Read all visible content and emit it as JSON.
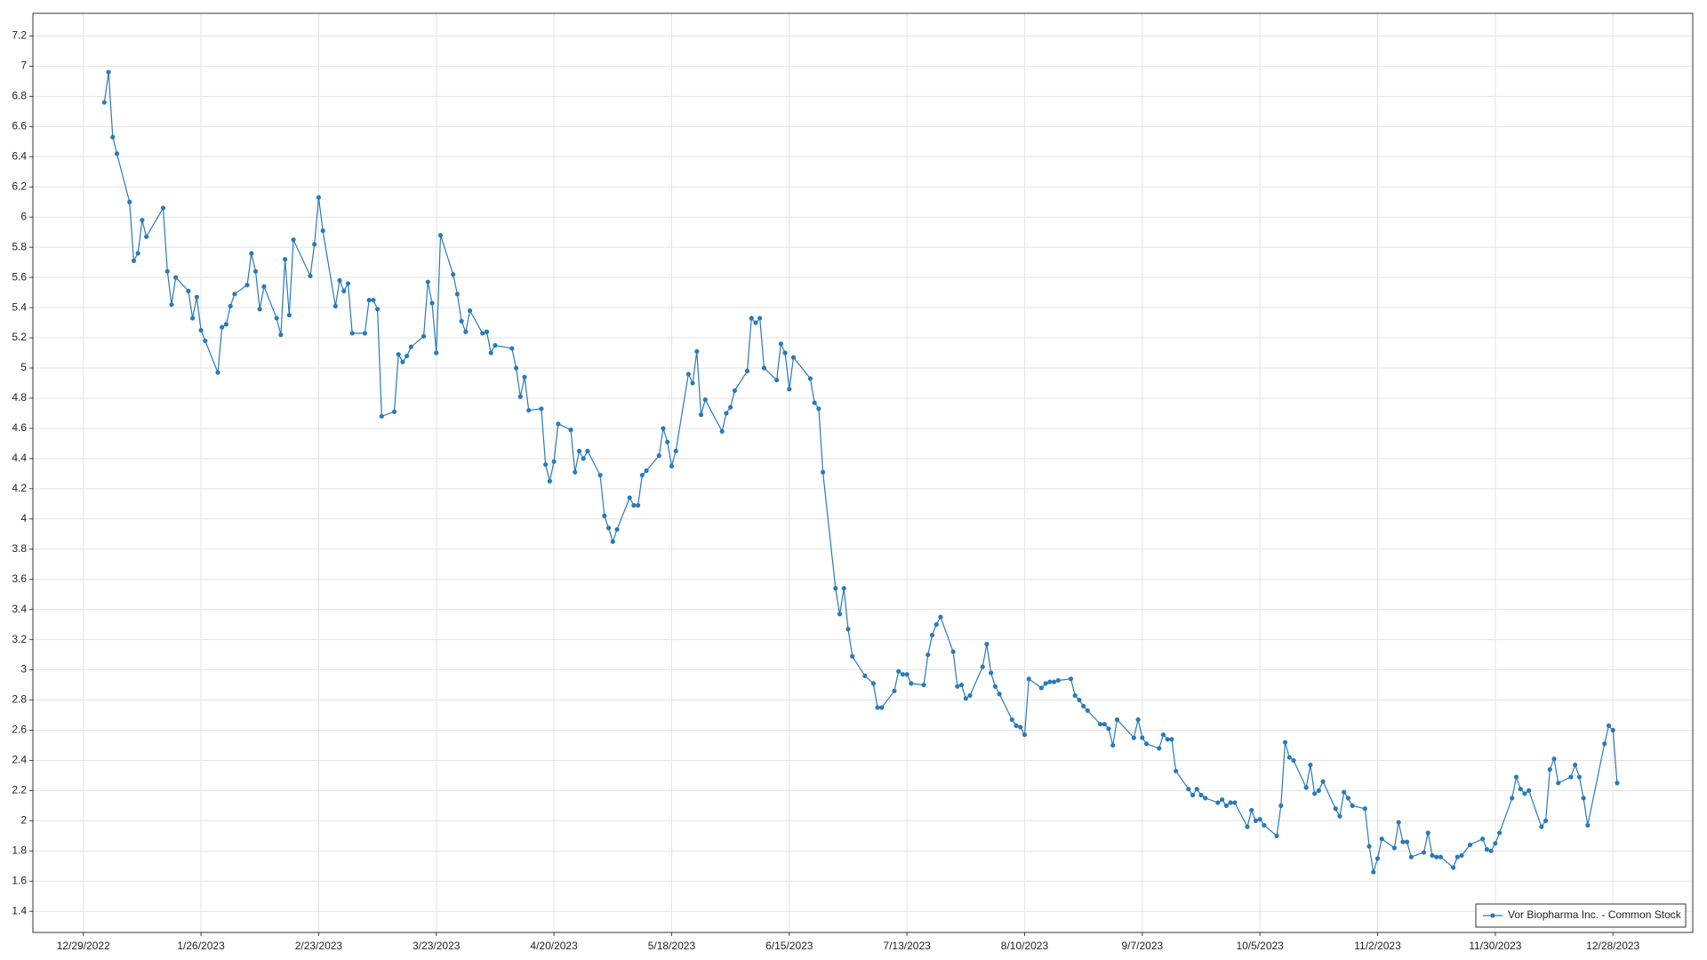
{
  "chart_data": {
    "type": "line",
    "series": [
      {
        "name": "Vor Biopharma Inc. - Common Stock",
        "color": "#2a7ab8",
        "x": [
          "1/3/2023",
          "1/4/2023",
          "1/5/2023",
          "1/6/2023",
          "1/9/2023",
          "1/10/2023",
          "1/11/2023",
          "1/12/2023",
          "1/13/2023",
          "1/17/2023",
          "1/18/2023",
          "1/19/2023",
          "1/20/2023",
          "1/23/2023",
          "1/24/2023",
          "1/25/2023",
          "1/26/2023",
          "1/27/2023",
          "1/30/2023",
          "1/31/2023",
          "2/1/2023",
          "2/2/2023",
          "2/3/2023",
          "2/6/2023",
          "2/7/2023",
          "2/8/2023",
          "2/9/2023",
          "2/10/2023",
          "2/13/2023",
          "2/14/2023",
          "2/15/2023",
          "2/16/2023",
          "2/17/2023",
          "2/21/2023",
          "2/22/2023",
          "2/23/2023",
          "2/24/2023",
          "2/27/2023",
          "2/28/2023",
          "3/1/2023",
          "3/2/2023",
          "3/3/2023",
          "3/6/2023",
          "3/7/2023",
          "3/8/2023",
          "3/9/2023",
          "3/10/2023",
          "3/13/2023",
          "3/14/2023",
          "3/15/2023",
          "3/16/2023",
          "3/17/2023",
          "3/20/2023",
          "3/21/2023",
          "3/22/2023",
          "3/23/2023",
          "3/24/2023",
          "3/27/2023",
          "3/28/2023",
          "3/29/2023",
          "3/30/2023",
          "3/31/2023",
          "4/3/2023",
          "4/4/2023",
          "4/5/2023",
          "4/6/2023",
          "4/10/2023",
          "4/11/2023",
          "4/12/2023",
          "4/13/2023",
          "4/14/2023",
          "4/17/2023",
          "4/18/2023",
          "4/19/2023",
          "4/20/2023",
          "4/21/2023",
          "4/24/2023",
          "4/25/2023",
          "4/26/2023",
          "4/27/2023",
          "4/28/2023",
          "5/1/2023",
          "5/2/2023",
          "5/3/2023",
          "5/4/2023",
          "5/5/2023",
          "5/8/2023",
          "5/9/2023",
          "5/10/2023",
          "5/11/2023",
          "5/12/2023",
          "5/15/2023",
          "5/16/2023",
          "5/17/2023",
          "5/18/2023",
          "5/19/2023",
          "5/22/2023",
          "5/23/2023",
          "5/24/2023",
          "5/25/2023",
          "5/26/2023",
          "5/30/2023",
          "5/31/2023",
          "6/1/2023",
          "6/2/2023",
          "6/5/2023",
          "6/6/2023",
          "6/7/2023",
          "6/8/2023",
          "6/9/2023",
          "6/12/2023",
          "6/13/2023",
          "6/14/2023",
          "6/15/2023",
          "6/16/2023",
          "6/20/2023",
          "6/21/2023",
          "6/22/2023",
          "6/23/2023",
          "6/26/2023",
          "6/27/2023",
          "6/28/2023",
          "6/29/2023",
          "6/30/2023",
          "7/3/2023",
          "7/5/2023",
          "7/6/2023",
          "7/7/2023",
          "7/10/2023",
          "7/11/2023",
          "7/12/2023",
          "7/13/2023",
          "7/14/2023",
          "7/17/2023",
          "7/18/2023",
          "7/19/2023",
          "7/20/2023",
          "7/21/2023",
          "7/24/2023",
          "7/25/2023",
          "7/26/2023",
          "7/27/2023",
          "7/28/2023",
          "7/31/2023",
          "8/1/2023",
          "8/2/2023",
          "8/3/2023",
          "8/4/2023",
          "8/7/2023",
          "8/8/2023",
          "8/9/2023",
          "8/10/2023",
          "8/11/2023",
          "8/14/2023",
          "8/15/2023",
          "8/16/2023",
          "8/17/2023",
          "8/18/2023",
          "8/21/2023",
          "8/22/2023",
          "8/23/2023",
          "8/24/2023",
          "8/25/2023",
          "8/28/2023",
          "8/29/2023",
          "8/30/2023",
          "8/31/2023",
          "9/1/2023",
          "9/5/2023",
          "9/6/2023",
          "9/7/2023",
          "9/8/2023",
          "9/11/2023",
          "9/12/2023",
          "9/13/2023",
          "9/14/2023",
          "9/15/2023",
          "9/18/2023",
          "9/19/2023",
          "9/20/2023",
          "9/21/2023",
          "9/22/2023",
          "9/25/2023",
          "9/26/2023",
          "9/27/2023",
          "9/28/2023",
          "9/29/2023",
          "10/2/2023",
          "10/3/2023",
          "10/4/2023",
          "10/5/2023",
          "10/6/2023",
          "10/9/2023",
          "10/10/2023",
          "10/11/2023",
          "10/12/2023",
          "10/13/2023",
          "10/16/2023",
          "10/17/2023",
          "10/18/2023",
          "10/19/2023",
          "10/20/2023",
          "10/23/2023",
          "10/24/2023",
          "10/25/2023",
          "10/26/2023",
          "10/27/2023",
          "10/30/2023",
          "10/31/2023",
          "11/1/2023",
          "11/2/2023",
          "11/3/2023",
          "11/6/2023",
          "11/7/2023",
          "11/8/2023",
          "11/9/2023",
          "11/10/2023",
          "11/13/2023",
          "11/14/2023",
          "11/15/2023",
          "11/16/2023",
          "11/17/2023",
          "11/20/2023",
          "11/21/2023",
          "11/22/2023",
          "11/24/2023",
          "11/27/2023",
          "11/28/2023",
          "11/29/2023",
          "11/30/2023",
          "12/1/2023",
          "12/4/2023",
          "12/5/2023",
          "12/6/2023",
          "12/7/2023",
          "12/8/2023",
          "12/11/2023",
          "12/12/2023",
          "12/13/2023",
          "12/14/2023",
          "12/15/2023",
          "12/18/2023",
          "12/19/2023",
          "12/20/2023",
          "12/21/2023",
          "12/22/2023",
          "12/26/2023",
          "12/27/2023",
          "12/28/2023",
          "12/29/2023"
        ],
        "values": [
          6.76,
          6.96,
          6.53,
          6.42,
          6.1,
          5.71,
          5.76,
          5.98,
          5.87,
          6.06,
          5.64,
          5.42,
          5.6,
          5.51,
          5.33,
          5.47,
          5.25,
          5.18,
          4.97,
          5.27,
          5.29,
          5.41,
          5.49,
          5.55,
          5.76,
          5.64,
          5.39,
          5.54,
          5.33,
          5.22,
          5.72,
          5.35,
          5.85,
          5.61,
          5.82,
          6.13,
          5.91,
          5.41,
          5.58,
          5.51,
          5.56,
          5.23,
          5.23,
          5.45,
          5.45,
          5.39,
          4.68,
          4.71,
          5.09,
          5.04,
          5.08,
          5.14,
          5.21,
          5.57,
          5.43,
          5.1,
          5.88,
          5.62,
          5.49,
          5.31,
          5.24,
          5.38,
          5.23,
          5.24,
          5.1,
          5.15,
          5.13,
          5,
          4.81,
          4.94,
          4.72,
          4.73,
          4.36,
          4.25,
          4.38,
          4.63,
          4.59,
          4.31,
          4.45,
          4.4,
          4.45,
          4.29,
          4.02,
          3.94,
          3.85,
          3.93,
          4.14,
          4.09,
          4.09,
          4.29,
          4.32,
          4.42,
          4.6,
          4.51,
          4.35,
          4.45,
          4.96,
          4.9,
          5.11,
          4.69,
          4.79,
          4.58,
          4.7,
          4.74,
          4.85,
          4.98,
          5.33,
          5.3,
          5.33,
          5,
          4.92,
          5.16,
          5.1,
          4.86,
          5.07,
          4.93,
          4.77,
          4.73,
          4.31,
          3.54,
          3.37,
          3.54,
          3.27,
          3.09,
          2.96,
          2.91,
          2.75,
          2.75,
          2.86,
          2.99,
          2.97,
          2.97,
          2.91,
          2.9,
          3.1,
          3.23,
          3.3,
          3.35,
          3.12,
          2.89,
          2.9,
          2.81,
          2.83,
          3.02,
          3.17,
          2.98,
          2.89,
          2.84,
          2.67,
          2.63,
          2.62,
          2.57,
          2.94,
          2.88,
          2.91,
          2.92,
          2.92,
          2.93,
          2.94,
          2.83,
          2.8,
          2.76,
          2.73,
          2.64,
          2.64,
          2.61,
          2.5,
          2.67,
          2.55,
          2.67,
          2.55,
          2.51,
          2.48,
          2.57,
          2.54,
          2.54,
          2.33,
          2.21,
          2.17,
          2.21,
          2.17,
          2.15,
          2.12,
          2.14,
          2.1,
          2.12,
          2.12,
          1.96,
          2.07,
          2,
          2.01,
          1.97,
          1.9,
          2.1,
          2.52,
          2.42,
          2.4,
          2.22,
          2.37,
          2.18,
          2.2,
          2.26,
          2.08,
          2.03,
          2.19,
          2.15,
          2.1,
          2.08,
          1.83,
          1.66,
          1.75,
          1.88,
          1.82,
          1.99,
          1.86,
          1.86,
          1.76,
          1.79,
          1.92,
          1.77,
          1.76,
          1.76,
          1.69,
          1.76,
          1.77,
          1.84,
          1.88,
          1.81,
          1.8,
          1.85,
          1.92,
          2.15,
          2.29,
          2.21,
          2.18,
          2.2,
          1.96,
          2,
          2.34,
          2.41,
          2.25,
          2.29,
          2.37,
          2.29,
          2.15,
          1.97,
          2.51,
          2.63,
          2.6,
          2.25
        ]
      }
    ],
    "xlim": [
      "12/17/2022",
      "1/16/2024"
    ],
    "xticks": [
      "12/29/2022",
      "1/26/2023",
      "2/23/2023",
      "3/23/2023",
      "4/20/2023",
      "5/18/2023",
      "6/15/2023",
      "7/13/2023",
      "8/10/2023",
      "9/7/2023",
      "10/5/2023",
      "11/2/2023",
      "11/30/2023",
      "12/28/2023"
    ],
    "ylim": [
      1.26,
      7.35
    ],
    "yticks": [
      1.4,
      1.6,
      1.8,
      2,
      2.2,
      2.4,
      2.6,
      2.8,
      3,
      3.2,
      3.4,
      3.6,
      3.8,
      4,
      4.2,
      4.4,
      4.6,
      4.8,
      5,
      5.2,
      5.4,
      5.6,
      5.8,
      6,
      6.2,
      6.4,
      6.6,
      6.8,
      7,
      7.2
    ],
    "grid": true,
    "legend": "lower right"
  }
}
